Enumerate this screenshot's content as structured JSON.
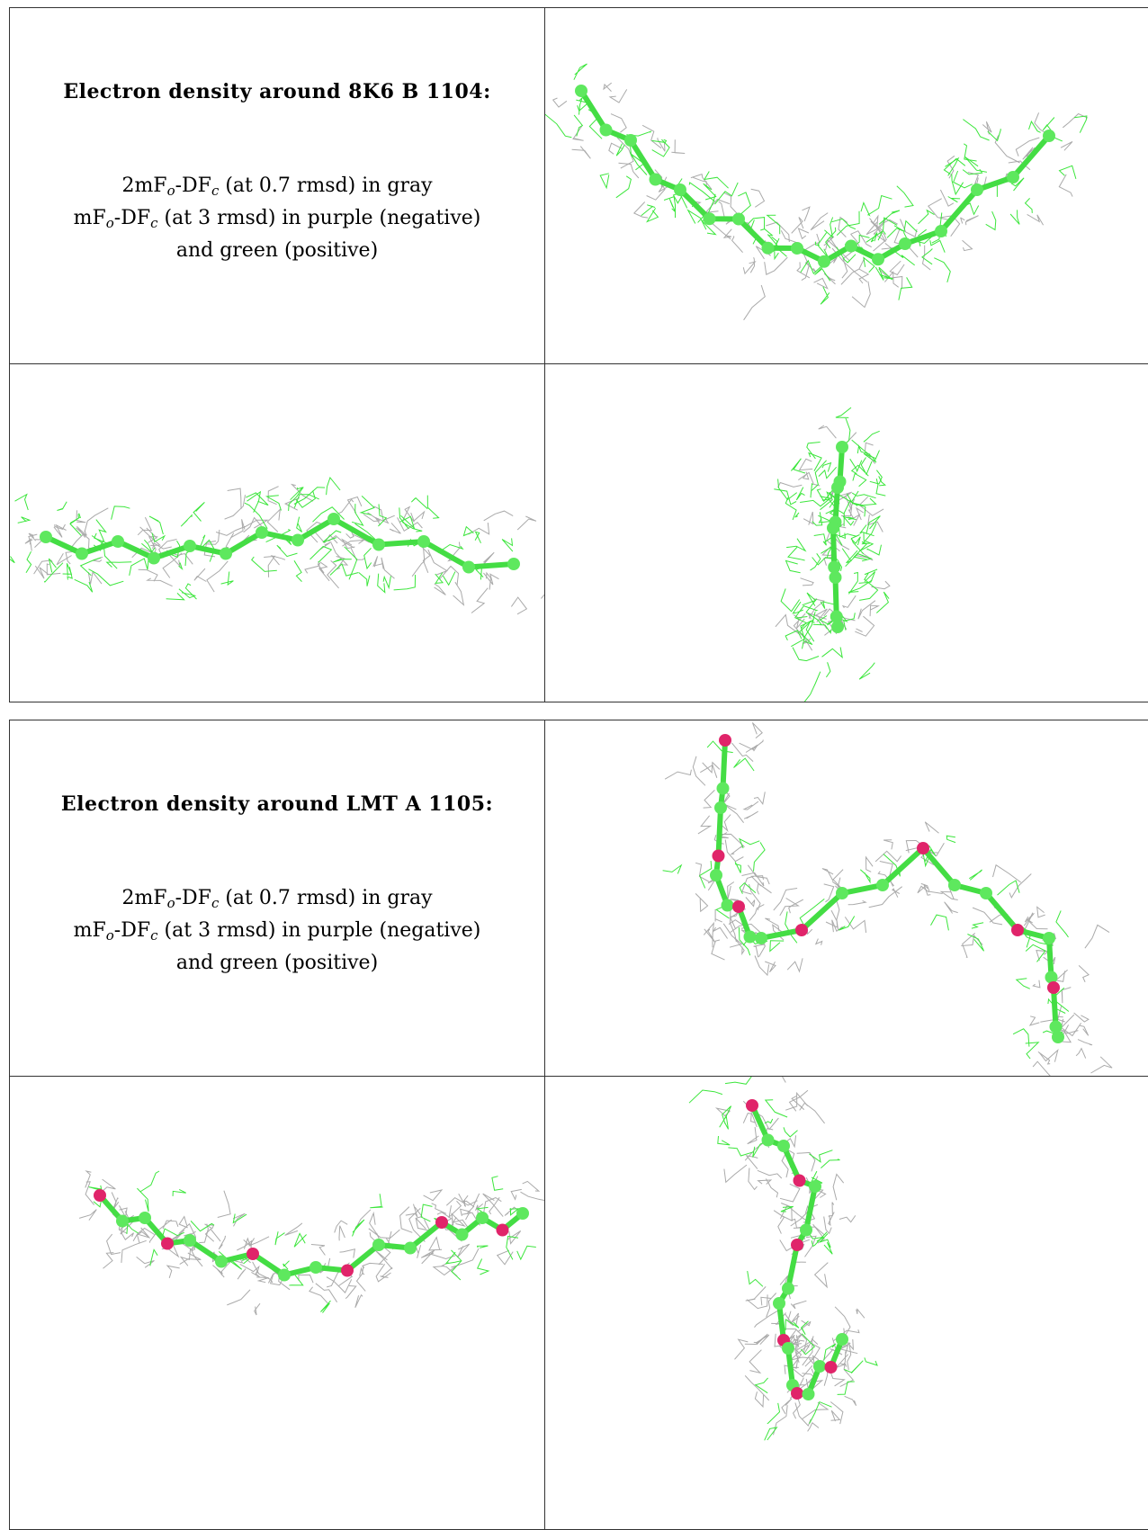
{
  "blocks": [
    {
      "title": "Electron density around 8K6 B 1104:",
      "caption": [
        [
          {
            "t": "2mF"
          },
          {
            "t": "o",
            "sub": true
          },
          {
            "t": "-DF"
          },
          {
            "t": "c",
            "sub": true
          },
          {
            "t": " (at 0.7 rmsd) in gray"
          }
        ],
        [
          {
            "t": "mF"
          },
          {
            "t": "o",
            "sub": true
          },
          {
            "t": "-DF"
          },
          {
            "t": "c",
            "sub": true
          },
          {
            "t": " (at 3 rmsd) in purple (negative)"
          }
        ],
        [
          {
            "t": "and green (positive)"
          }
        ]
      ]
    },
    {
      "title": "Electron density around LMT A 1105:",
      "caption": [
        [
          {
            "t": "2mF"
          },
          {
            "t": "o",
            "sub": true
          },
          {
            "t": "-DF"
          },
          {
            "t": "c",
            "sub": true
          },
          {
            "t": " (at 0.7 rmsd) in gray"
          }
        ],
        [
          {
            "t": "mF"
          },
          {
            "t": "o",
            "sub": true
          },
          {
            "t": "-DF"
          },
          {
            "t": "c",
            "sub": true
          },
          {
            "t": " (at 3 rmsd) in purple (negative)"
          }
        ],
        [
          {
            "t": "and green (positive)"
          }
        ]
      ]
    }
  ]
}
